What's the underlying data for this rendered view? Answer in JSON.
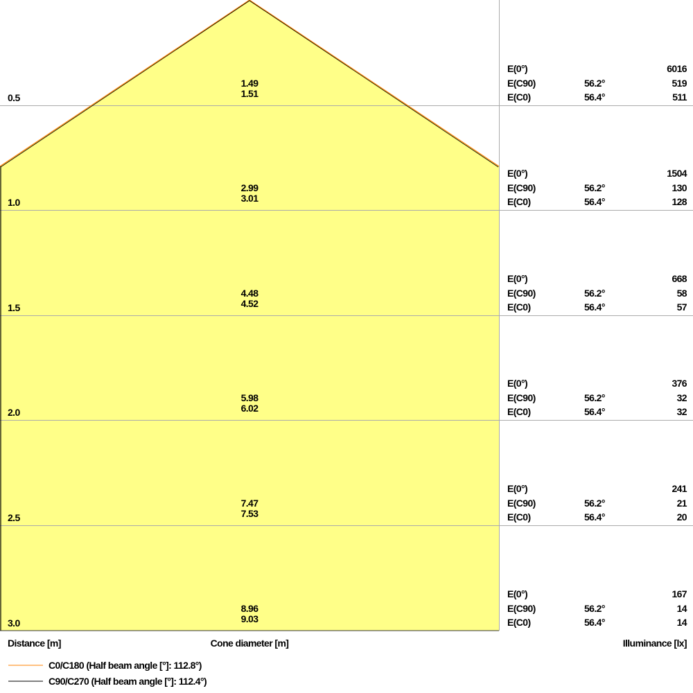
{
  "colors": {
    "cone_fill": "#ffff88",
    "c0_line": "#ff8000",
    "c90_line": "#000000",
    "grid": "#aaaaaa"
  },
  "rows": [
    {
      "distance": "0.5",
      "cone_c90": "1.49",
      "cone_c0": "1.51",
      "e0": "6016",
      "ec90_angle": "56.2°",
      "ec90": "519",
      "ec0_angle": "56.4°",
      "ec0": "511"
    },
    {
      "distance": "1.0",
      "cone_c90": "2.99",
      "cone_c0": "3.01",
      "e0": "1504",
      "ec90_angle": "56.2°",
      "ec90": "130",
      "ec0_angle": "56.4°",
      "ec0": "128"
    },
    {
      "distance": "1.5",
      "cone_c90": "4.48",
      "cone_c0": "4.52",
      "e0": "668",
      "ec90_angle": "56.2°",
      "ec90": "58",
      "ec0_angle": "56.4°",
      "ec0": "57"
    },
    {
      "distance": "2.0",
      "cone_c90": "5.98",
      "cone_c0": "6.02",
      "e0": "376",
      "ec90_angle": "56.2°",
      "ec90": "32",
      "ec0_angle": "56.4°",
      "ec0": "32"
    },
    {
      "distance": "2.5",
      "cone_c90": "7.47",
      "cone_c0": "7.53",
      "e0": "241",
      "ec90_angle": "56.2°",
      "ec90": "21",
      "ec0_angle": "56.4°",
      "ec0": "20"
    },
    {
      "distance": "3.0",
      "cone_c90": "8.96",
      "cone_c0": "9.03",
      "e0": "167",
      "ec90_angle": "56.2°",
      "ec90": "14",
      "ec0_angle": "56.4°",
      "ec0": "14"
    }
  ],
  "labels": {
    "e0": "E(0°)",
    "ec90": "E(C90)",
    "ec0": "E(C0)",
    "distance": "Distance [m]",
    "cone": "Cone diameter [m]",
    "illuminance": "Illuminance [lx]"
  },
  "legend": [
    {
      "label": "C0/C180 (Half beam angle [°]: 112.8°)"
    },
    {
      "label": "C90/C270 (Half beam angle [°]: 112.4°)"
    }
  ]
}
